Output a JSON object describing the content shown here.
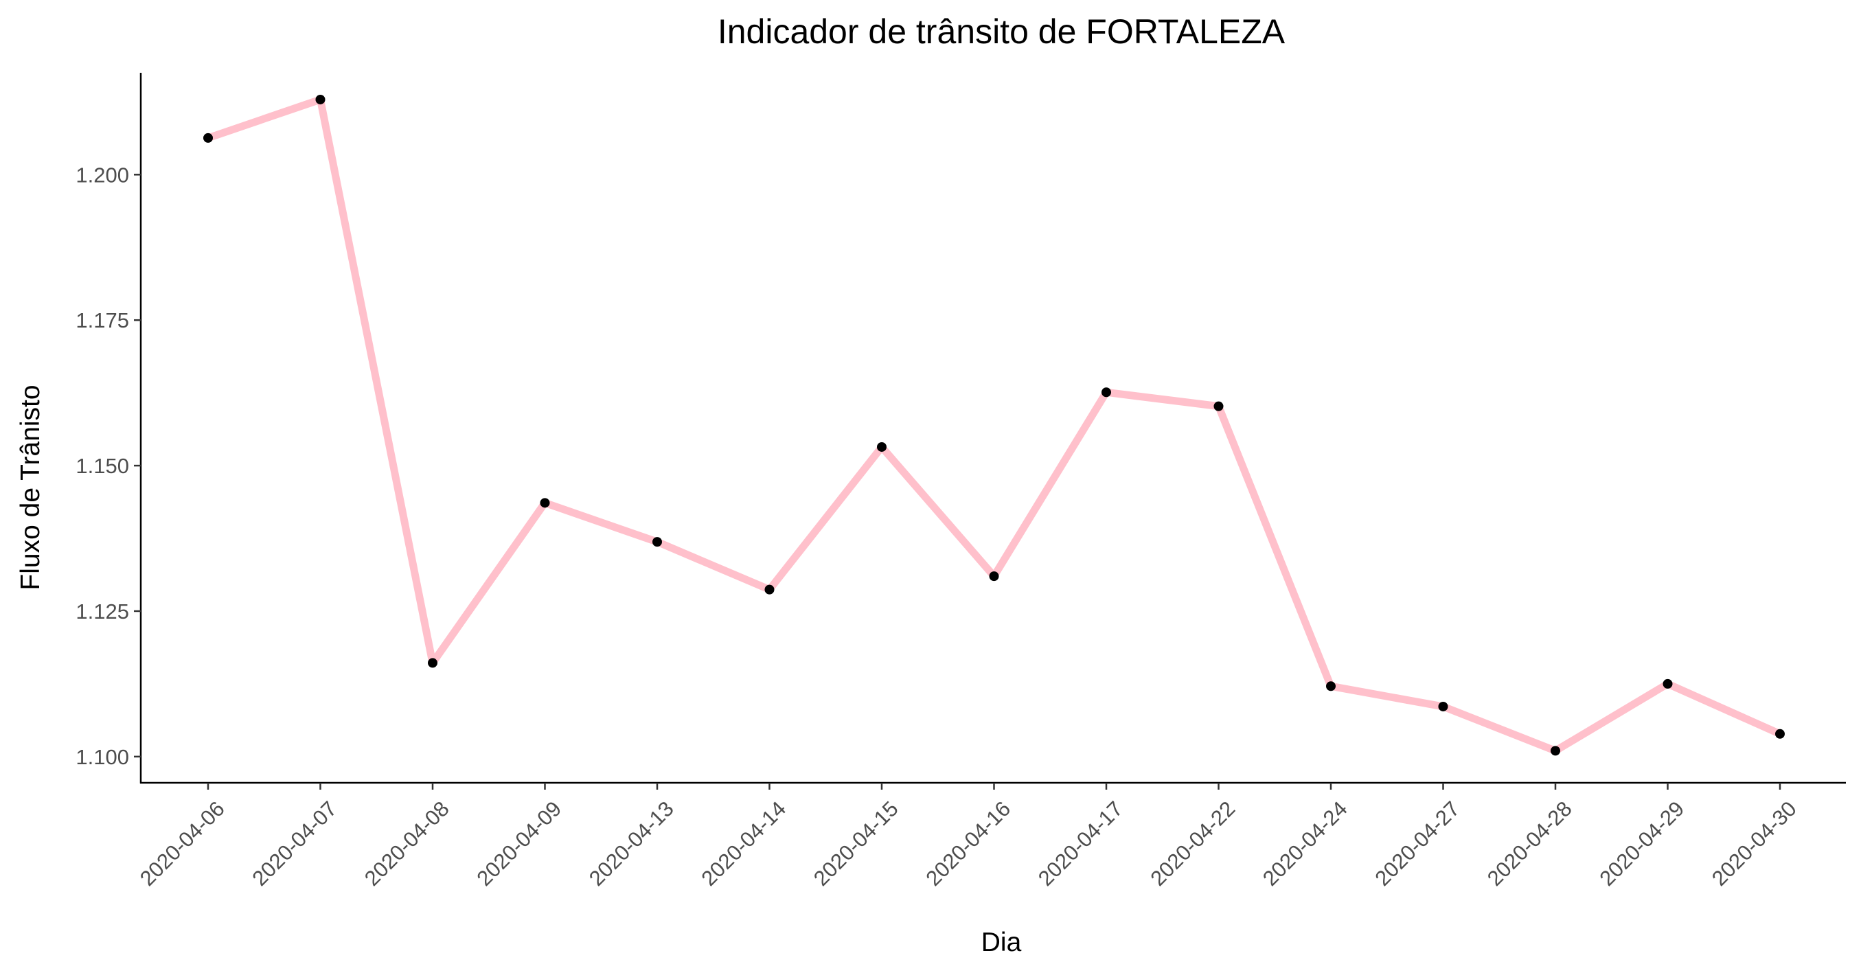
{
  "chart_data": {
    "type": "line",
    "title": "Indicador de trânsito de FORTALEZA",
    "xlabel": "Dia",
    "ylabel": "Fluxo de Trânisto",
    "categories": [
      "2020-04-06",
      "2020-04-07",
      "2020-04-08",
      "2020-04-09",
      "2020-04-13",
      "2020-04-14",
      "2020-04-15",
      "2020-04-16",
      "2020-04-17",
      "2020-04-22",
      "2020-04-24",
      "2020-04-27",
      "2020-04-28",
      "2020-04-29",
      "2020-04-30"
    ],
    "values": [
      1.2063,
      1.2129,
      1.1161,
      1.1436,
      1.1369,
      1.1287,
      1.1532,
      1.131,
      1.1626,
      1.1602,
      1.1121,
      1.1086,
      1.101,
      1.1125,
      1.1039
    ],
    "ylim": [
      1.0955,
      1.2175
    ],
    "yticks": [
      1.1,
      1.125,
      1.15,
      1.175,
      1.2
    ],
    "ytick_labels": [
      "1.100",
      "1.125",
      "1.150",
      "1.175",
      "1.200"
    ],
    "grid": false,
    "legend": "none",
    "line_color": "#FFC0CB",
    "point_color": "#000000"
  }
}
